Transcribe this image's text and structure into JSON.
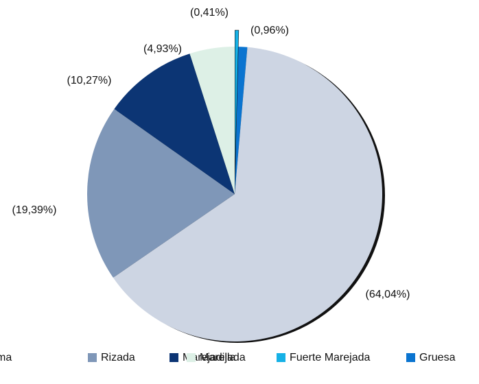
{
  "chart_data": {
    "type": "pie",
    "categories": [
      "Calma",
      "Rizada",
      "Marejadilla",
      "Marejada",
      "Fuerte Marejada",
      "Gruesa"
    ],
    "values": [
      64.04,
      19.39,
      10.27,
      4.93,
      0.41,
      0.96
    ],
    "value_labels": [
      "(64,04%)",
      "(19,39%)",
      "(10,27%)",
      "(4,93%)",
      "(0,41%)",
      "(0,96%)"
    ],
    "colors": [
      "#cdd5e3",
      "#7f97b8",
      "#0c3574",
      "#ddf0e6",
      "#16b1e6",
      "#0a74d0"
    ],
    "legend": "bottom"
  }
}
